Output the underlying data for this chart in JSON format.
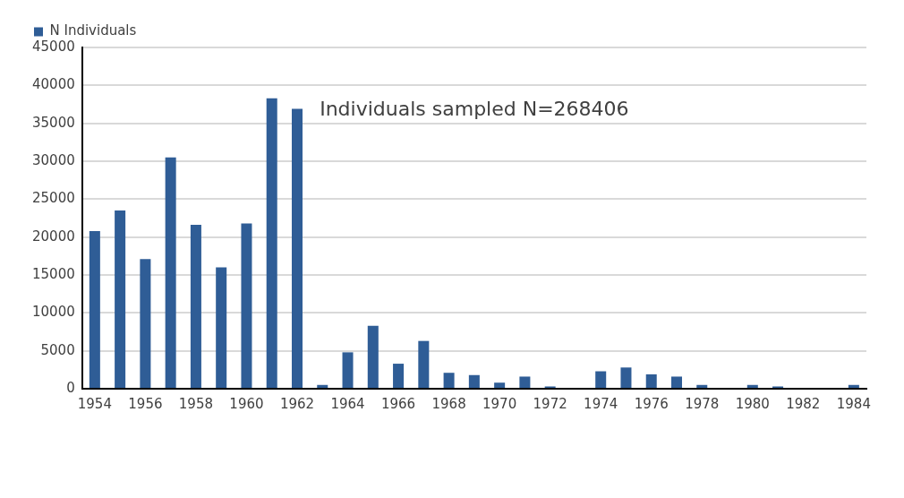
{
  "chart_data": {
    "type": "bar",
    "categories": [
      "1954",
      null,
      "1956",
      null,
      "1958",
      null,
      "1960",
      null,
      "1962",
      null,
      "1964",
      null,
      "1966",
      null,
      "1968",
      null,
      "1970",
      null,
      "1972",
      null,
      "1974",
      null,
      "1976",
      null,
      "1978",
      null,
      "1980",
      null,
      "1982",
      null,
      "1984"
    ],
    "series": [
      {
        "name": "N Individuals",
        "color": "#2f5d96",
        "values": [
          20800,
          23500,
          17100,
          30500,
          21600,
          16000,
          21800,
          38300,
          36900,
          500,
          4800,
          8300,
          3300,
          6300,
          2100,
          1800,
          800,
          1600,
          300,
          0,
          2300,
          2800,
          1900,
          1600,
          500,
          0,
          500,
          300,
          0,
          0,
          500
        ]
      }
    ],
    "ylim": [
      0,
      45000
    ],
    "yticks": [
      0,
      5000,
      10000,
      15000,
      20000,
      25000,
      30000,
      35000,
      40000,
      45000
    ],
    "grid": "y",
    "legend": "top left",
    "annotations": [
      "Individuals sampled N=268406"
    ]
  }
}
